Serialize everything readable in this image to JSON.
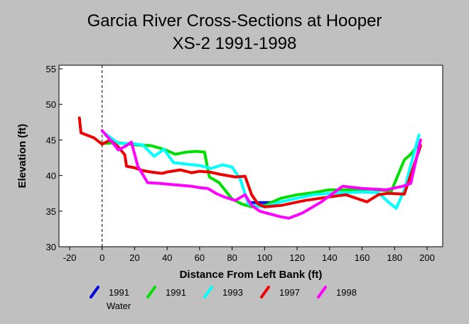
{
  "chart_data": {
    "type": "line",
    "title": "Garcia River Cross-Sections at Hooper",
    "subtitle": "XS-2 1991-1998",
    "xlabel": "Distance From Left Bank (ft)",
    "ylabel": "Elevation (ft)",
    "xlim": [
      -20,
      200
    ],
    "ylim": [
      30,
      55
    ],
    "xticks": [
      -20,
      0,
      20,
      40,
      60,
      80,
      100,
      120,
      140,
      160,
      180,
      200
    ],
    "yticks": [
      30,
      35,
      40,
      45,
      50,
      55
    ],
    "grid": false,
    "reference_line_x": 0,
    "series": [
      {
        "name": "1991 Water",
        "color": "#0000dd",
        "x": [
          90,
          107
        ],
        "y": [
          36.2,
          36.2
        ]
      },
      {
        "name": "1991",
        "color": "#00e000",
        "x": [
          0,
          10,
          20,
          30,
          38,
          45,
          52,
          58,
          63,
          66,
          72,
          80,
          86,
          92,
          100,
          110,
          120,
          130,
          140,
          150,
          165,
          178,
          182,
          186,
          190,
          195
        ],
        "y": [
          44.5,
          44.6,
          44.3,
          44.2,
          43.7,
          43.0,
          43.3,
          43.4,
          43.3,
          39.8,
          39.0,
          36.7,
          36.0,
          35.6,
          35.8,
          36.8,
          37.3,
          37.6,
          38.0,
          38.0,
          38.1,
          37.8,
          40.0,
          42.2,
          43.0,
          44.4
        ]
      },
      {
        "name": "1993",
        "color": "#00ffff",
        "x": [
          0,
          10,
          18,
          25,
          32,
          38,
          44,
          52,
          60,
          67,
          74,
          80,
          85,
          90,
          95,
          100,
          110,
          120,
          130,
          140,
          150,
          160,
          170,
          176,
          181,
          186,
          190,
          195
        ],
        "y": [
          46.2,
          44.5,
          44.5,
          44.3,
          42.7,
          43.7,
          41.8,
          41.6,
          41.4,
          41.0,
          41.5,
          41.2,
          39.5,
          36.0,
          35.7,
          35.6,
          36.3,
          36.8,
          37.3,
          37.5,
          37.6,
          37.7,
          37.6,
          36.3,
          35.4,
          38.0,
          41.5,
          45.7
        ]
      },
      {
        "name": "1997",
        "color": "#ee0000",
        "x": [
          -14,
          -13,
          -5,
          0,
          5,
          10,
          14,
          15,
          20,
          25,
          30,
          37,
          40,
          48,
          55,
          60,
          66,
          72,
          82,
          88,
          92,
          96,
          100,
          110,
          125,
          140,
          150,
          163,
          170,
          176,
          186,
          196
        ],
        "y": [
          48.1,
          46.0,
          45.3,
          44.4,
          45.0,
          44.0,
          42.9,
          41.3,
          41.1,
          40.7,
          40.5,
          40.3,
          40.5,
          40.8,
          40.4,
          40.6,
          40.5,
          40.2,
          39.8,
          39.9,
          37.3,
          36.0,
          35.6,
          35.8,
          36.5,
          37.0,
          37.3,
          36.3,
          37.3,
          37.5,
          37.4,
          44.2
        ]
      },
      {
        "name": "1998",
        "color": "#ff00ff",
        "x": [
          0,
          5,
          10,
          15,
          18,
          22,
          28,
          35,
          45,
          55,
          60,
          65,
          70,
          75,
          82,
          88,
          92,
          97,
          100,
          110,
          115,
          123,
          135,
          148,
          160,
          175,
          185,
          190,
          196
        ],
        "y": [
          46.3,
          45.0,
          43.6,
          44.2,
          44.7,
          41.3,
          39.0,
          38.9,
          38.7,
          38.5,
          38.3,
          38.2,
          37.5,
          37.0,
          36.5,
          37.3,
          35.8,
          35.0,
          34.8,
          34.2,
          34.0,
          34.7,
          36.3,
          38.5,
          38.2,
          38.0,
          38.5,
          38.9,
          45.0
        ]
      }
    ],
    "legend": {
      "placement": "bottom",
      "labels": [
        "1991",
        "1991",
        "1993",
        "1997",
        "1998"
      ],
      "sub_label": "Water"
    }
  }
}
